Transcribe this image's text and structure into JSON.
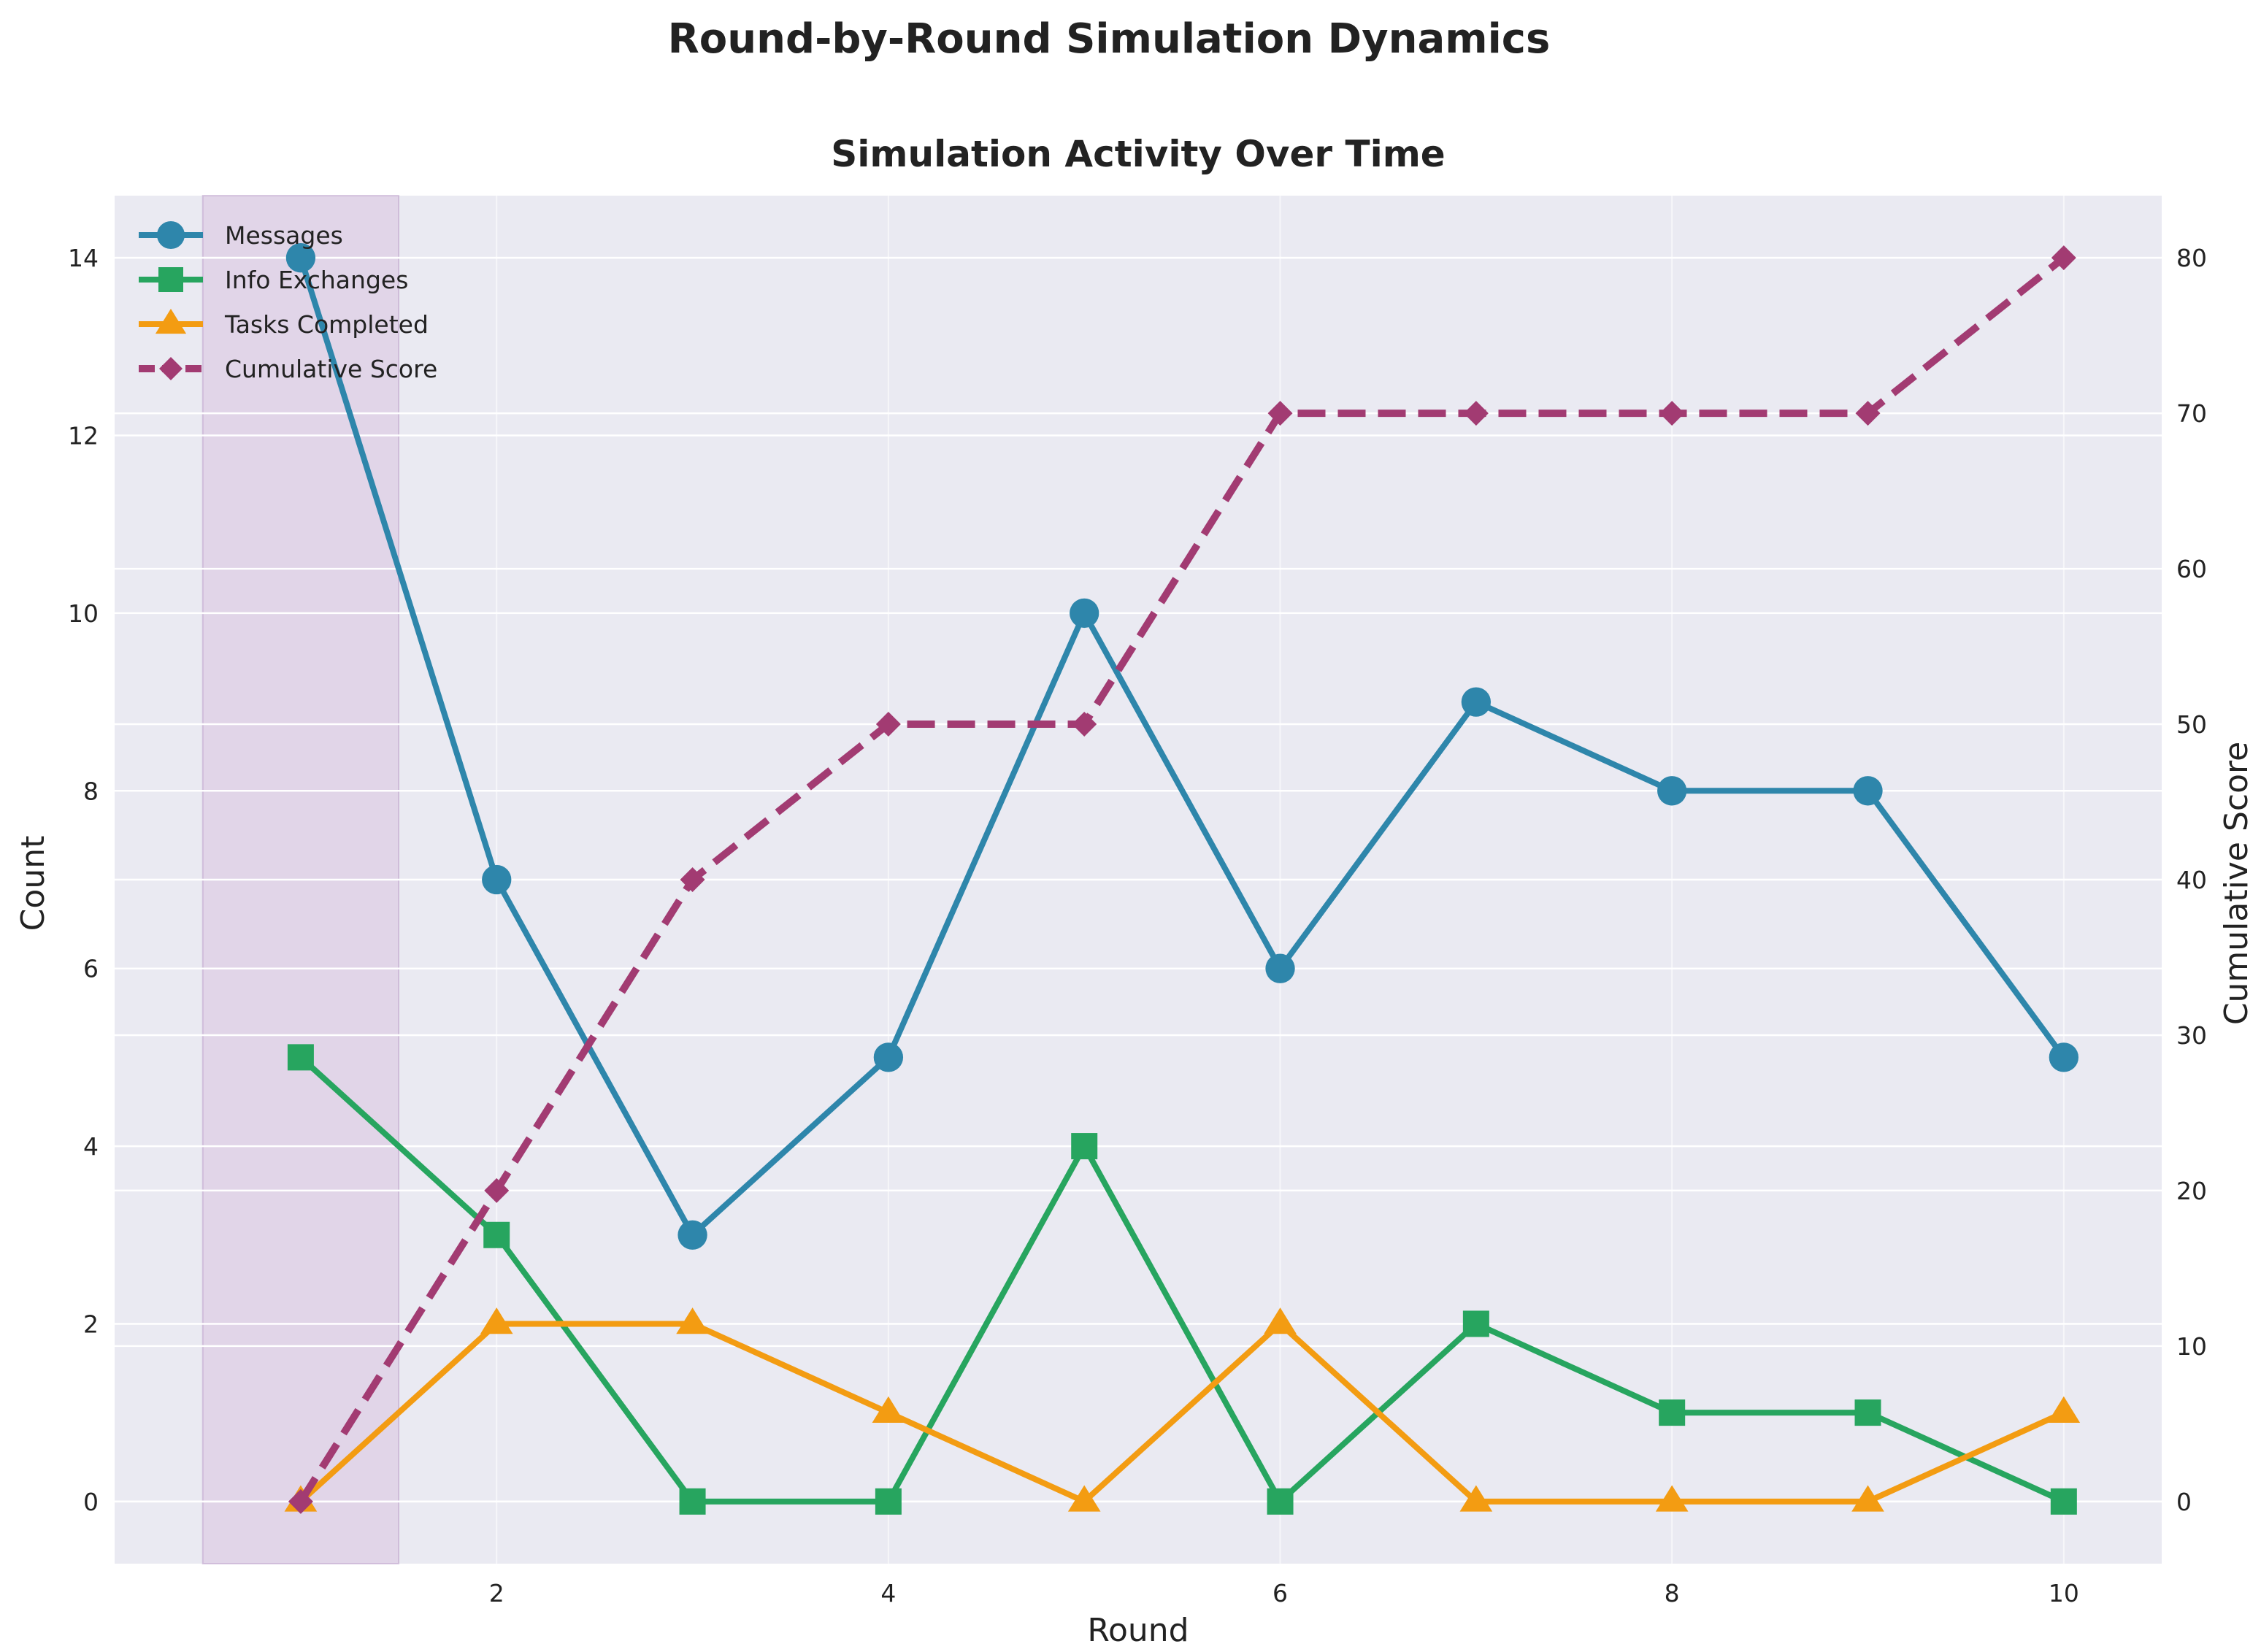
{
  "chart_data": {
    "type": "line",
    "title": "Round-by-Round Simulation Dynamics",
    "subtitle": "Simulation Activity Over Time",
    "xlabel": "Round",
    "ylabel": "Count",
    "y2label": "Cumulative Score",
    "x": [
      1,
      2,
      3,
      4,
      5,
      6,
      7,
      8,
      9,
      10
    ],
    "xlim": [
      0.05,
      10.5
    ],
    "ylim": [
      -0.7,
      14.7
    ],
    "y2lim": [
      -4,
      84
    ],
    "xticks": [
      2,
      4,
      6,
      8,
      10
    ],
    "yticks": [
      0,
      2,
      4,
      6,
      8,
      10,
      12,
      14
    ],
    "y2ticks": [
      0,
      10,
      20,
      30,
      40,
      50,
      60,
      70,
      80
    ],
    "grid": true,
    "legend_position": "upper-left",
    "highlight_span": [
      0.5,
      1.5
    ],
    "series": [
      {
        "name": "Messages",
        "axis": "left",
        "marker": "circle",
        "style": "solid",
        "color": "#2e86ab",
        "values": [
          14,
          7,
          3,
          5,
          10,
          6,
          9,
          8,
          8,
          5
        ]
      },
      {
        "name": "Info Exchanges",
        "axis": "left",
        "marker": "square",
        "style": "solid",
        "color": "#27a55f",
        "values": [
          5,
          3,
          0,
          0,
          4,
          0,
          2,
          1,
          1,
          0
        ]
      },
      {
        "name": "Tasks Completed",
        "axis": "left",
        "marker": "triangle",
        "style": "solid",
        "color": "#f39c12",
        "values": [
          0,
          2,
          2,
          1,
          0,
          2,
          0,
          0,
          0,
          1
        ]
      },
      {
        "name": "Cumulative Score",
        "axis": "right",
        "marker": "diamond",
        "style": "dashed",
        "color": "#a23b72",
        "values": [
          0,
          20,
          40,
          50,
          50,
          70,
          70,
          70,
          70,
          80
        ]
      }
    ],
    "colors": {
      "plot_background": "#eaeaf2",
      "highlight": "#d8c3e0",
      "grid": "#ffffff"
    }
  }
}
